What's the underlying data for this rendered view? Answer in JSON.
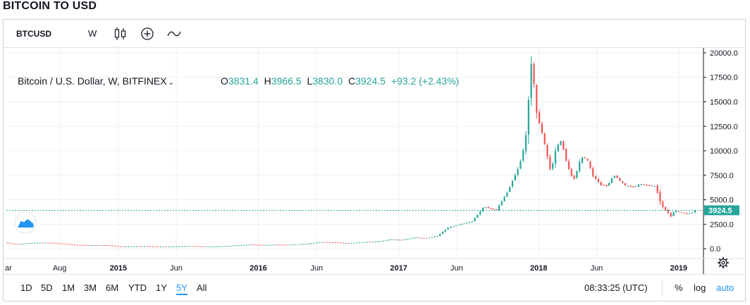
{
  "page": {
    "title": "BITCOIN TO USD"
  },
  "toolbar": {
    "symbol": "BTCUSD",
    "interval": "W"
  },
  "legend": {
    "title": "Bitcoin / U.S. Dollar, W, BITFINEX",
    "open_label": "O",
    "open": "3831.4",
    "high_label": "H",
    "high": "3966.5",
    "low_label": "L",
    "low": "3830.0",
    "close_label": "C",
    "close": "3924.5",
    "change": "+93.2 (+2.43%)"
  },
  "price_tag": "3924.5",
  "bottom": {
    "ranges": [
      "1D",
      "5D",
      "1M",
      "3M",
      "6M",
      "YTD",
      "1Y",
      "5Y",
      "All"
    ],
    "active_range": "5Y",
    "clock": "08:33:25 (UTC)",
    "percent": "%",
    "log": "log",
    "auto": "auto"
  },
  "colors": {
    "up": "#26a69a",
    "down": "#ef5350",
    "accent": "#2196f3",
    "price_line": "#26a69a"
  },
  "chart_data": {
    "type": "candlestick",
    "title": "Bitcoin / U.S. Dollar, W, BITFINEX",
    "ylim": [
      -1000,
      20500
    ],
    "y_ticks": [
      "20000.0",
      "17500.0",
      "15000.0",
      "12500.0",
      "10000.0",
      "7500.0",
      "5000.0",
      "2500.0",
      "0.0"
    ],
    "x_ticks": [
      "ar",
      "Aug",
      "2015",
      "Jun",
      "2016",
      "Jun",
      "2017",
      "Jun",
      "2018",
      "Jun",
      "2019"
    ],
    "x_tick_positions": [
      "2014-03-15",
      "2014-08-01",
      "2015-01-01",
      "2015-06-01",
      "2016-01-01",
      "2016-06-01",
      "2017-01-01",
      "2017-06-01",
      "2018-01-01",
      "2018-06-01",
      "2019-01-01"
    ],
    "xlim": [
      "2014-03-15",
      "2019-03-01"
    ],
    "grid": true,
    "last_close": 3924.5,
    "close_series": [
      [
        "2014-03-15",
        620
      ],
      [
        "2014-04-15",
        450
      ],
      [
        "2014-05-15",
        580
      ],
      [
        "2014-06-15",
        620
      ],
      [
        "2014-07-15",
        600
      ],
      [
        "2014-08-15",
        500
      ],
      [
        "2014-09-15",
        400
      ],
      [
        "2014-10-15",
        360
      ],
      [
        "2014-11-15",
        380
      ],
      [
        "2014-12-15",
        320
      ],
      [
        "2015-01-15",
        220
      ],
      [
        "2015-02-15",
        250
      ],
      [
        "2015-03-15",
        260
      ],
      [
        "2015-04-15",
        230
      ],
      [
        "2015-05-15",
        235
      ],
      [
        "2015-06-15",
        250
      ],
      [
        "2015-07-15",
        285
      ],
      [
        "2015-08-15",
        230
      ],
      [
        "2015-09-15",
        235
      ],
      [
        "2015-10-15",
        280
      ],
      [
        "2015-11-15",
        360
      ],
      [
        "2015-12-15",
        430
      ],
      [
        "2016-01-15",
        380
      ],
      [
        "2016-02-15",
        420
      ],
      [
        "2016-03-15",
        415
      ],
      [
        "2016-04-15",
        445
      ],
      [
        "2016-05-15",
        530
      ],
      [
        "2016-06-15",
        680
      ],
      [
        "2016-07-15",
        660
      ],
      [
        "2016-08-15",
        580
      ],
      [
        "2016-09-15",
        610
      ],
      [
        "2016-10-15",
        700
      ],
      [
        "2016-11-15",
        740
      ],
      [
        "2016-12-15",
        950
      ],
      [
        "2017-01-15",
        900
      ],
      [
        "2017-02-15",
        1150
      ],
      [
        "2017-03-15",
        1050
      ],
      [
        "2017-04-15",
        1300
      ],
      [
        "2017-05-15",
        2200
      ],
      [
        "2017-06-15",
        2500
      ],
      [
        "2017-07-15",
        2800
      ],
      [
        "2017-08-15",
        4300
      ],
      [
        "2017-09-15",
        3900
      ],
      [
        "2017-10-15",
        5800
      ],
      [
        "2017-11-15",
        8500
      ],
      [
        "2017-12-01",
        11000
      ],
      [
        "2017-12-17",
        19500
      ],
      [
        "2017-12-29",
        14000
      ],
      [
        "2018-01-15",
        11500
      ],
      [
        "2018-02-05",
        7800
      ],
      [
        "2018-02-20",
        10500
      ],
      [
        "2018-03-05",
        11000
      ],
      [
        "2018-03-20",
        8500
      ],
      [
        "2018-04-05",
        6900
      ],
      [
        "2018-04-25",
        9300
      ],
      [
        "2018-05-10",
        9200
      ],
      [
        "2018-05-25",
        7500
      ],
      [
        "2018-06-15",
        6500
      ],
      [
        "2018-07-01",
        6400
      ],
      [
        "2018-07-20",
        7500
      ],
      [
        "2018-08-05",
        6900
      ],
      [
        "2018-08-20",
        6400
      ],
      [
        "2018-09-10",
        6300
      ],
      [
        "2018-09-25",
        6600
      ],
      [
        "2018-10-15",
        6450
      ],
      [
        "2018-11-05",
        6400
      ],
      [
        "2018-11-20",
        4400
      ],
      [
        "2018-12-05",
        3800
      ],
      [
        "2018-12-15",
        3300
      ],
      [
        "2018-12-25",
        3900
      ],
      [
        "2019-01-10",
        3700
      ],
      [
        "2019-01-25",
        3550
      ],
      [
        "2019-02-08",
        3650
      ],
      [
        "2019-02-15",
        3924.5
      ]
    ]
  }
}
